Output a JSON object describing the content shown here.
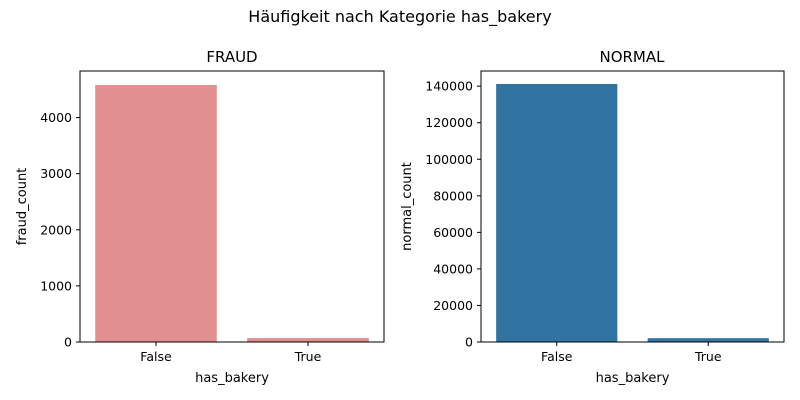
{
  "suptitle": "Häufigkeit nach Kategorie has_bakery",
  "chart_data": [
    {
      "type": "bar",
      "title": "FRAUD",
      "xlabel": "has_bakery",
      "ylabel": "fraud_count",
      "categories": [
        "False",
        "True"
      ],
      "values": [
        4580,
        70
      ],
      "ylim": [
        0,
        4830
      ],
      "yticks": [
        0,
        1000,
        2000,
        3000,
        4000
      ],
      "color": "#e28f90",
      "grid": false
    },
    {
      "type": "bar",
      "title": "NORMAL",
      "xlabel": "has_bakery",
      "ylabel": "normal_count",
      "categories": [
        "False",
        "True"
      ],
      "values": [
        141200,
        2100
      ],
      "ylim": [
        0,
        148300
      ],
      "yticks": [
        0,
        20000,
        40000,
        60000,
        80000,
        100000,
        120000,
        140000
      ],
      "color": "#3274a1",
      "grid": false
    }
  ]
}
